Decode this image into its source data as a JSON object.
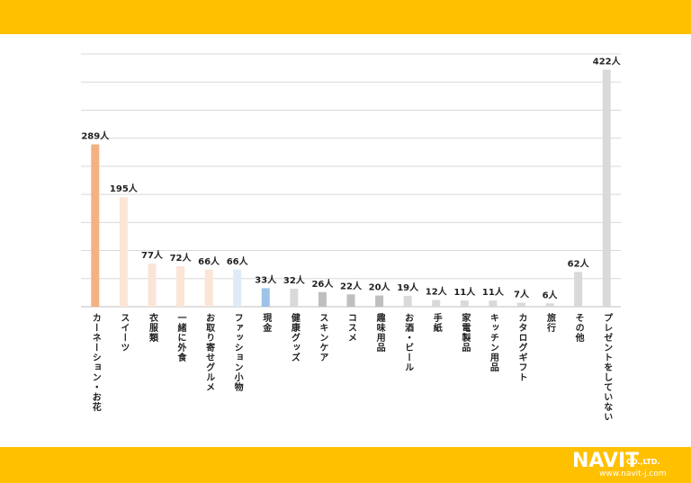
{
  "chart_data": {
    "type": "bar",
    "orientation": "vertical",
    "unit": "人",
    "ylim": [
      0,
      450
    ],
    "grid": true,
    "categories": [
      "カーネーション・お花",
      "スイーツ",
      "衣服類",
      "一緒に外食",
      "お取り寄せグルメ",
      "ファッション小物",
      "現金",
      "健康グッズ",
      "スキンケア",
      "コスメ",
      "趣味用品",
      "お酒・ビール",
      "手紙",
      "家電製品",
      "キッチン用品",
      "カタログギフト",
      "旅行",
      "その他",
      "プレゼントをしていない"
    ],
    "values": [
      289,
      195,
      77,
      72,
      66,
      66,
      33,
      32,
      26,
      22,
      20,
      19,
      12,
      11,
      11,
      7,
      6,
      62,
      422
    ],
    "labels": [
      "289人",
      "195人",
      "77人",
      "72人",
      "66人",
      "66人",
      "33人",
      "32人",
      "26人",
      "22人",
      "20人",
      "19人",
      "12人",
      "11人",
      "11人",
      "7人",
      "6人",
      "62人",
      "422人"
    ],
    "colors": [
      "#F4B183",
      "#FBE5D6",
      "#FBE5D6",
      "#FBE5D6",
      "#FBE5D6",
      "#DEEBF7",
      "#9DC3E6",
      "#D9D9D9",
      "#BFBFBF",
      "#BFBFBF",
      "#BFBFBF",
      "#D9D9D9",
      "#D9D9D9",
      "#D9D9D9",
      "#D9D9D9",
      "#D9D9D9",
      "#D9D9D9",
      "#D9D9D9",
      "#D9D9D9"
    ]
  },
  "branding": {
    "logo_main": "NAVIT",
    "logo_sub": "CO.,LTD.",
    "url": "www.navit-j.com"
  },
  "colors": {
    "band": "#FFC000",
    "grid": "#D9D9D9",
    "axis": "#BFBFBF"
  }
}
